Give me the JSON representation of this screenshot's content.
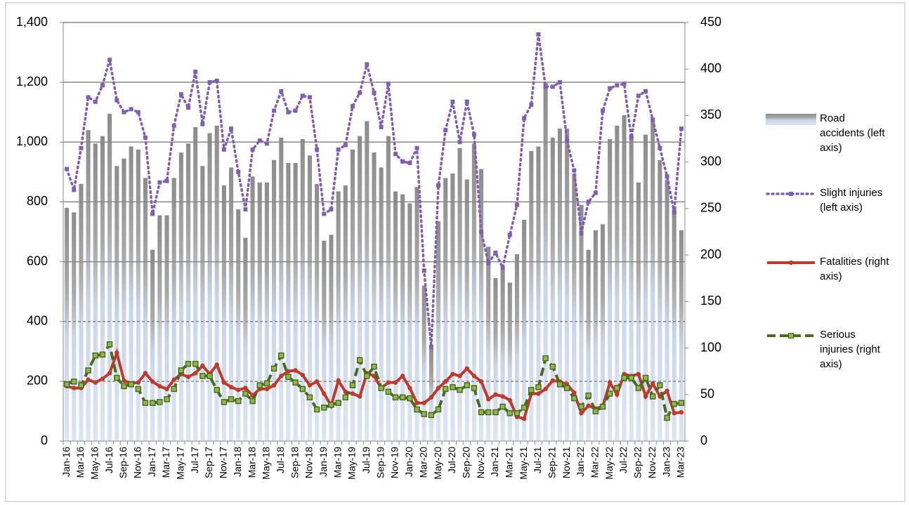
{
  "chart_data": {
    "type": "combo",
    "categories": [
      "Jan-16",
      null,
      "Mar-16",
      null,
      "May-16",
      null,
      "Jul-16",
      null,
      "Sep-16",
      null,
      "Nov-16",
      null,
      "Jan-17",
      null,
      "Mar-17",
      null,
      "May-17",
      null,
      "Jul-17",
      null,
      "Sep-17",
      null,
      "Nov-17",
      null,
      "Jan-18",
      null,
      "Mar-18",
      null,
      "May-18",
      null,
      "Jul-18",
      null,
      "Sep-18",
      null,
      "Nov-18",
      null,
      "Jan-19",
      null,
      "Mar-19",
      null,
      "May-19",
      null,
      "Jul-19",
      null,
      "Sep-19",
      null,
      "Nov-19",
      null,
      "Jan-20",
      null,
      "Mar-20",
      null,
      "May-20",
      null,
      "Jul-20",
      null,
      "Sep-20",
      null,
      "Nov-20",
      null,
      "Jan-21",
      null,
      "Mar-21",
      null,
      "May-21",
      null,
      "Jul-21",
      null,
      "Sep-21",
      null,
      "Nov-21",
      null,
      "Jan-22",
      null,
      "Mar-22",
      null,
      "May-22",
      null,
      "Jul-22",
      null,
      "Sep-22",
      null,
      "Nov-22",
      null,
      "Jan-23",
      null,
      "Mar-23"
    ],
    "series": [
      {
        "name": "Road accidents (left axis)",
        "type": "bar",
        "color": "#8c8c8c",
        "axis": "y",
        "values": [
          780,
          765,
          860,
          1040,
          995,
          1020,
          1095,
          920,
          945,
          985,
          975,
          880,
          640,
          755,
          755,
          880,
          965,
          995,
          1050,
          920,
          1030,
          1055,
          855,
          915,
          775,
          680,
          885,
          865,
          865,
          940,
          1015,
          930,
          930,
          1010,
          955,
          860,
          670,
          690,
          835,
          855,
          975,
          1020,
          1070,
          965,
          915,
          1020,
          835,
          825,
          795,
          850,
          520,
          310,
          735,
          880,
          895,
          980,
          875,
          995,
          910,
          650,
          545,
          575,
          530,
          625,
          740,
          970,
          985,
          1200,
          1015,
          1045,
          1045,
          895,
          790,
          640,
          705,
          725,
          1010,
          1055,
          1090,
          1025,
          865,
          1025,
          1070,
          940,
          875,
          785,
          705
        ]
      },
      {
        "name": "Slight injuries (left axis)",
        "type": "line",
        "line_style": "dotted",
        "color": "#7f5fb5",
        "axis": "y",
        "values": [
          910,
          840,
          980,
          1150,
          1135,
          1190,
          1275,
          1140,
          1100,
          1110,
          1100,
          1015,
          760,
          865,
          870,
          1055,
          1160,
          1115,
          1235,
          1060,
          1200,
          1205,
          975,
          1045,
          900,
          775,
          975,
          1005,
          995,
          1105,
          1170,
          1100,
          1105,
          1155,
          1150,
          975,
          760,
          775,
          975,
          990,
          1120,
          1165,
          1260,
          1165,
          1050,
          1195,
          960,
          935,
          930,
          980,
          570,
          315,
          855,
          1040,
          1135,
          1000,
          1135,
          1025,
          700,
          595,
          630,
          580,
          690,
          790,
          1080,
          1125,
          1360,
          1185,
          1185,
          1200,
          1005,
          905,
          695,
          800,
          830,
          1105,
          1180,
          1190,
          1195,
          1015,
          1155,
          1170,
          1075,
          980,
          885,
          765,
          1045
        ]
      },
      {
        "name": "Fatalities (right axis)",
        "type": "line",
        "line_style": "solid",
        "color": "#c0392b",
        "axis": "y2",
        "values": [
          59,
          57,
          57,
          66,
          63,
          67,
          73,
          95,
          65,
          62,
          63,
          73,
          64,
          59,
          56,
          66,
          72,
          69,
          73,
          81,
          72,
          82,
          63,
          58,
          55,
          57,
          49,
          56,
          56,
          60,
          70,
          75,
          76,
          71,
          60,
          64,
          51,
          38,
          65,
          53,
          51,
          48,
          73,
          70,
          57,
          63,
          63,
          70,
          57,
          41,
          41,
          47,
          57,
          64,
          72,
          70,
          78,
          70,
          64,
          45,
          50,
          48,
          44,
          26,
          24,
          51,
          51,
          56,
          65,
          64,
          61,
          52,
          30,
          38,
          35,
          37,
          63,
          50,
          72,
          70,
          72,
          48,
          62,
          48,
          54,
          30,
          31
        ]
      },
      {
        "name": "Serious injuries (right axis)",
        "type": "line",
        "line_style": "dashed",
        "color": "#4a6b1f",
        "axis": "y2",
        "values": [
          61,
          64,
          60,
          76,
          92,
          93,
          104,
          68,
          59,
          61,
          56,
          41,
          41,
          42,
          45,
          56,
          76,
          83,
          83,
          70,
          70,
          55,
          42,
          45,
          43,
          51,
          43,
          60,
          62,
          78,
          92,
          69,
          63,
          56,
          47,
          34,
          36,
          39,
          41,
          47,
          60,
          87,
          70,
          80,
          57,
          53,
          47,
          47,
          46,
          34,
          29,
          28,
          34,
          56,
          58,
          55,
          60,
          57,
          31,
          31,
          31,
          37,
          30,
          30,
          36,
          55,
          58,
          89,
          80,
          61,
          57,
          46,
          37,
          49,
          32,
          37,
          51,
          57,
          68,
          68,
          57,
          68,
          48,
          60,
          25,
          40,
          41
        ]
      }
    ],
    "ylim": [
      0,
      1400
    ],
    "yticks": [
      0,
      200,
      400,
      600,
      800,
      {
        "value": 1000,
        "label": "1,000"
      },
      {
        "value": 1200,
        "label": "1,200"
      },
      {
        "value": 1400,
        "label": "1,400"
      }
    ],
    "y2lim": [
      0,
      450
    ],
    "y2ticks": [
      0,
      50,
      100,
      150,
      200,
      250,
      300,
      350,
      400,
      450
    ],
    "grid": true,
    "legend": "right"
  }
}
